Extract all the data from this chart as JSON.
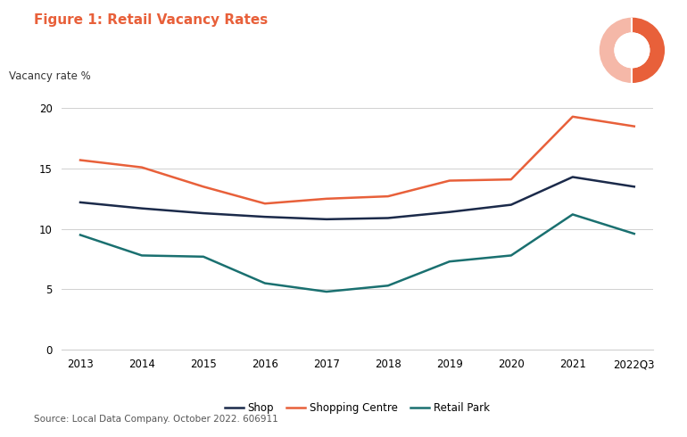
{
  "title": "Figure 1: Retail Vacancy Rates",
  "ylabel": "Vacancy rate %",
  "source": "Source: Local Data Company. October 2022. 606911",
  "x_labels": [
    "2013",
    "2014",
    "2015",
    "2016",
    "2017",
    "2018",
    "2019",
    "2020",
    "2021",
    "2022Q3"
  ],
  "x_values": [
    0,
    1,
    2,
    3,
    4,
    5,
    6,
    7,
    8,
    9
  ],
  "shop": [
    12.2,
    11.7,
    11.3,
    11.0,
    10.8,
    10.9,
    11.4,
    12.0,
    14.3,
    13.5
  ],
  "shopping_centre": [
    15.7,
    15.1,
    13.5,
    12.1,
    12.5,
    12.7,
    14.0,
    14.1,
    19.3,
    18.5
  ],
  "retail_park": [
    9.5,
    7.8,
    7.7,
    5.5,
    4.8,
    5.3,
    7.3,
    7.8,
    11.2,
    9.6
  ],
  "shop_color": "#1b2a4a",
  "shopping_centre_color": "#e8603a",
  "retail_park_color": "#1a7070",
  "ylim": [
    0,
    21
  ],
  "yticks": [
    0,
    5,
    10,
    15,
    20
  ],
  "title_color": "#e8603a",
  "title_fontsize": 11,
  "background_color": "#ffffff",
  "grid_color": "#d0d0d0",
  "line_width": 1.8
}
